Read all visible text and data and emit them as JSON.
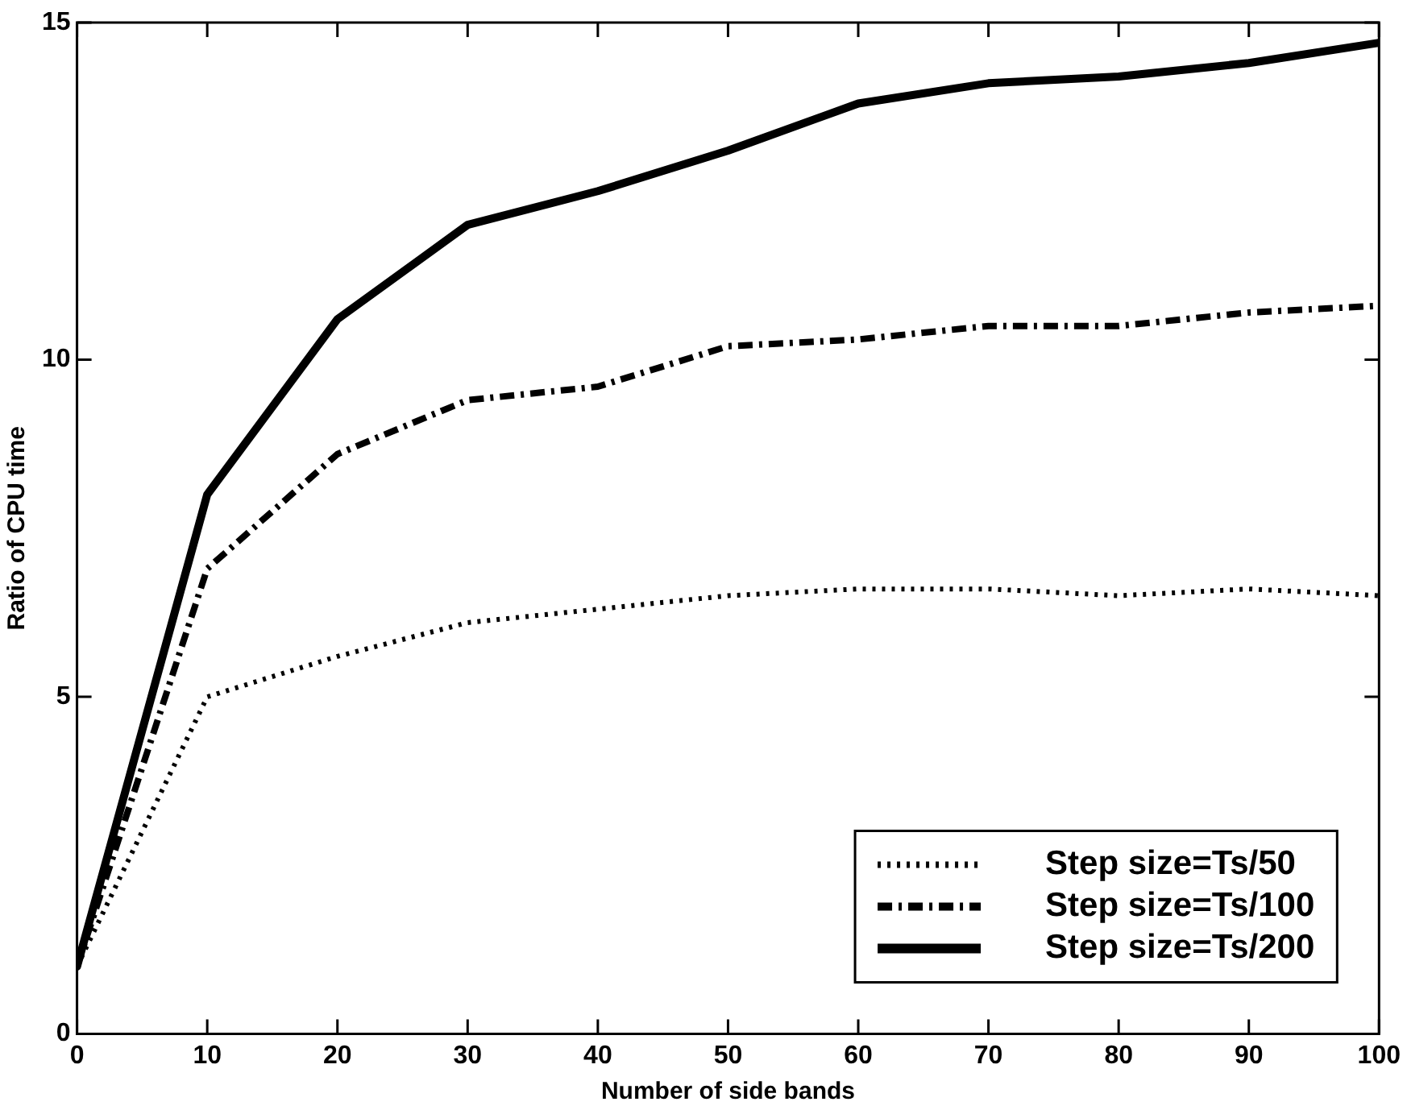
{
  "chart_data": {
    "type": "line",
    "xlabel": "Number of side bands",
    "ylabel": "Ratio of CPU time",
    "x": [
      0,
      10,
      20,
      30,
      40,
      50,
      60,
      70,
      80,
      90,
      100
    ],
    "series": [
      {
        "name": "Step size=Ts/50",
        "color": "#000000",
        "line_style": "dotted",
        "values": [
          1.0,
          5.0,
          5.6,
          6.1,
          6.3,
          6.5,
          6.6,
          6.6,
          6.5,
          6.6,
          6.5
        ]
      },
      {
        "name": "Step size=Ts/100",
        "color": "#000000",
        "line_style": "dashed",
        "values": [
          1.0,
          6.9,
          8.6,
          9.4,
          9.6,
          10.2,
          10.3,
          10.5,
          10.5,
          10.7,
          10.8
        ]
      },
      {
        "name": "Step size=Ts/200",
        "color": "#000000",
        "line_style": "solid",
        "values": [
          1.0,
          8.0,
          10.6,
          12.0,
          12.5,
          13.1,
          13.8,
          14.1,
          14.2,
          14.4,
          14.7
        ]
      }
    ],
    "xlim": [
      0,
      100
    ],
    "xticks": [
      0,
      10,
      20,
      30,
      40,
      50,
      60,
      70,
      80,
      90,
      100
    ],
    "ylim": [
      0,
      15
    ],
    "yticks": [
      0,
      5,
      10,
      15
    ],
    "grid": false,
    "legend": "bottom right",
    "marker": "none"
  }
}
